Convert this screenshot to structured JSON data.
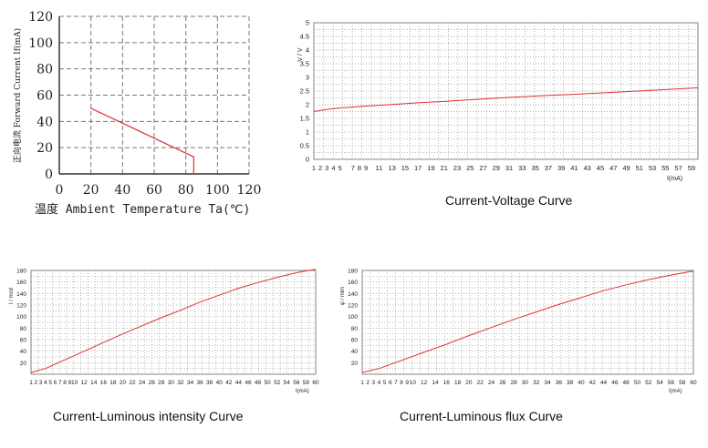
{
  "chart_data": [
    {
      "type": "line",
      "title": "",
      "xlabel": "温度 Ambient Temperature Ta(℃)",
      "ylabel": "正向电流 Forward Current If(mA)",
      "xlim": [
        0,
        120
      ],
      "ylim": [
        0,
        120
      ],
      "x_ticks": [
        "0",
        "20",
        "40",
        "60",
        "80",
        "100",
        "120"
      ],
      "y_ticks": [
        "0",
        "20",
        "40",
        "60",
        "80",
        "100",
        "120"
      ],
      "grid": true,
      "grid_style": "dashed",
      "line_color": "#e03030",
      "series": [
        {
          "x": [
            20,
            85,
            85,
            85
          ],
          "y": [
            50,
            13,
            13,
            0
          ]
        }
      ]
    },
    {
      "type": "line",
      "title": "",
      "caption": "Current-Voltage Curve",
      "xlabel": "I(mA)",
      "ylabel": "V / V",
      "xlim": [
        1,
        60
      ],
      "ylim": [
        0,
        5
      ],
      "x_ticks": [
        "1",
        "2",
        "3",
        "4",
        "5",
        "7",
        "8",
        "9",
        "11",
        "13",
        "15",
        "17",
        "19",
        "21",
        "23",
        "25",
        "27",
        "29",
        "31",
        "33",
        "35",
        "37",
        "39",
        "41",
        "43",
        "45",
        "47",
        "49",
        "51",
        "53",
        "55",
        "57",
        "59"
      ],
      "y_ticks": [
        "0",
        "0.5",
        "1",
        "1.5",
        "2",
        "2.5",
        "3",
        "3.5",
        "4",
        "4.5",
        "5"
      ],
      "grid": true,
      "grid_style": "dotted",
      "line_color": "#e03030",
      "series": [
        {
          "x": [
            1,
            3,
            5,
            9,
            13,
            17,
            21,
            25,
            29,
            33,
            37,
            41,
            45,
            49,
            53,
            57,
            60
          ],
          "y": [
            1.75,
            1.83,
            1.88,
            1.95,
            2.01,
            2.07,
            2.12,
            2.18,
            2.24,
            2.29,
            2.34,
            2.38,
            2.43,
            2.48,
            2.53,
            2.58,
            2.62
          ]
        }
      ]
    },
    {
      "type": "line",
      "title": "",
      "caption": "Current-Luminous intensity Curve",
      "xlabel": "I(mA)",
      "ylabel": "I / mcd",
      "xlim": [
        1,
        60
      ],
      "ylim": [
        0,
        180
      ],
      "x_ticks": [
        "1",
        "2",
        "3",
        "4",
        "5",
        "6",
        "7",
        "8",
        "9",
        "10",
        "12",
        "14",
        "16",
        "18",
        "20",
        "22",
        "24",
        "26",
        "28",
        "30",
        "32",
        "34",
        "36",
        "38",
        "40",
        "42",
        "44",
        "46",
        "48",
        "50",
        "52",
        "54",
        "56",
        "58",
        "60"
      ],
      "y_ticks": [
        "20",
        "40",
        "60",
        "80",
        "100",
        "120",
        "140",
        "160",
        "180"
      ],
      "grid": true,
      "grid_style": "dotted",
      "line_color": "#e03030",
      "series": [
        {
          "x": [
            1,
            4,
            8,
            12,
            16,
            20,
            24,
            28,
            32,
            36,
            40,
            44,
            48,
            52,
            56,
            60
          ],
          "y": [
            3,
            10,
            25,
            40,
            55,
            70,
            84,
            98,
            111,
            125,
            137,
            149,
            159,
            168,
            176,
            182
          ]
        }
      ]
    },
    {
      "type": "line",
      "title": "",
      "caption": "Current-Luminous flux Curve",
      "xlabel": "I(mA)",
      "ylabel": "φ / mlm",
      "xlim": [
        1,
        60
      ],
      "ylim": [
        0,
        180
      ],
      "x_ticks": [
        "1",
        "2",
        "3",
        "4",
        "5",
        "6",
        "7",
        "8",
        "9",
        "10",
        "12",
        "14",
        "16",
        "18",
        "20",
        "22",
        "24",
        "26",
        "28",
        "30",
        "32",
        "34",
        "36",
        "38",
        "40",
        "42",
        "44",
        "46",
        "48",
        "50",
        "52",
        "54",
        "56",
        "58",
        "60"
      ],
      "y_ticks": [
        "20",
        "40",
        "60",
        "80",
        "100",
        "120",
        "140",
        "160",
        "180"
      ],
      "grid": true,
      "grid_style": "dotted",
      "line_color": "#e03030",
      "series": [
        {
          "x": [
            1,
            4,
            8,
            12,
            16,
            20,
            24,
            28,
            32,
            36,
            40,
            44,
            48,
            52,
            56,
            60
          ],
          "y": [
            3,
            10,
            24,
            38,
            52,
            67,
            81,
            95,
            108,
            121,
            133,
            145,
            155,
            164,
            172,
            179
          ]
        }
      ]
    }
  ]
}
